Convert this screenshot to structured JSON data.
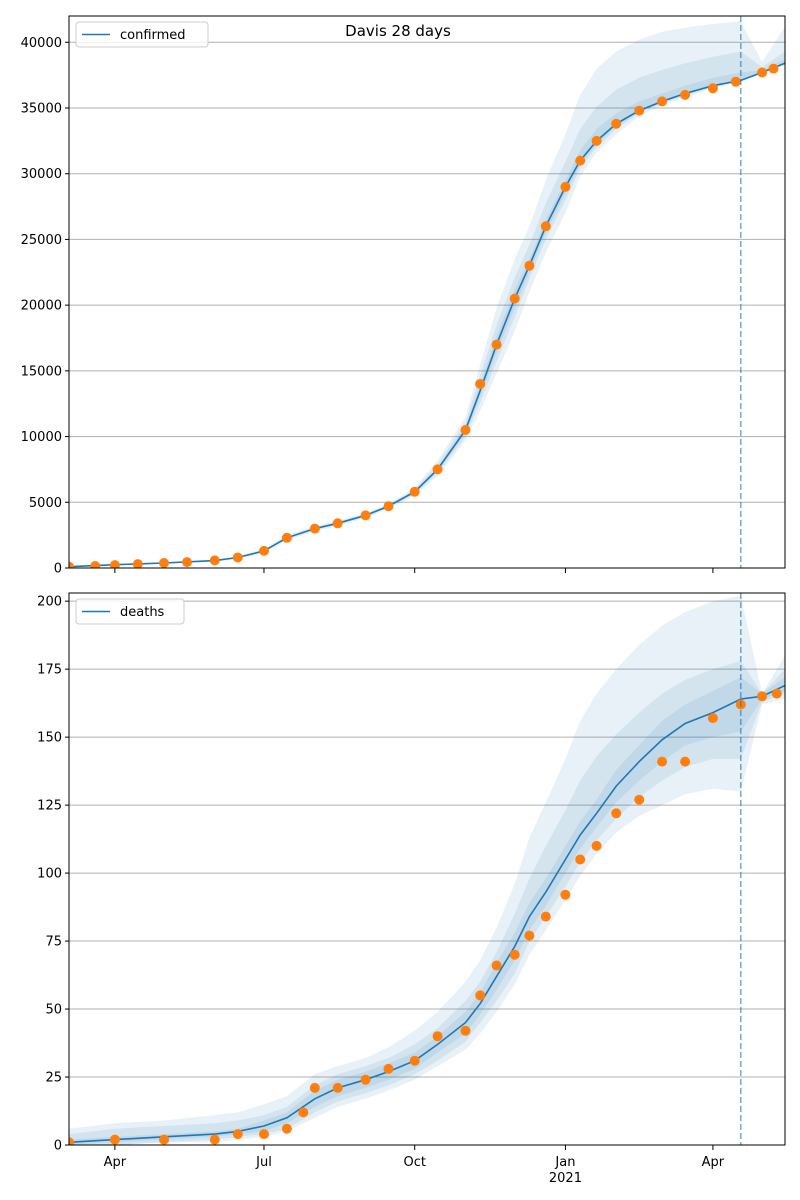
{
  "figure_title": "Davis 28 days",
  "colors": {
    "model_line": "#1f77b4",
    "observed_points": "#ff7f0e",
    "band": "#1f77b4",
    "grid": "#b0b0b0",
    "vline": "#1f77b4"
  },
  "x_axis": {
    "tick_labels": [
      "Apr",
      "Jul",
      "Oct",
      "Jan",
      "Apr"
    ],
    "tick_dates": [
      "2020-04-01",
      "2020-07-01",
      "2020-10-01",
      "2021-01-01",
      "2021-04-01"
    ],
    "year_label": "2021",
    "start": "2020-03-04",
    "end": "2021-05-15",
    "forecast_start": "2021-04-18"
  },
  "chart_data": [
    {
      "type": "line",
      "legend": "confirmed",
      "legend_position": "top-left",
      "grid": "y",
      "ylim": [
        0,
        42000
      ],
      "yticks": [
        0,
        5000,
        10000,
        15000,
        20000,
        25000,
        30000,
        35000,
        40000
      ],
      "ytick_labels": [
        "0",
        "5000",
        "10000",
        "15000",
        "20000",
        "25000",
        "30000",
        "35000",
        "40000"
      ],
      "model": {
        "x": [
          "2020-03-04",
          "2020-04-01",
          "2020-05-01",
          "2020-06-01",
          "2020-06-15",
          "2020-07-01",
          "2020-07-15",
          "2020-08-01",
          "2020-08-15",
          "2020-09-01",
          "2020-09-15",
          "2020-10-01",
          "2020-10-15",
          "2020-11-01",
          "2020-11-10",
          "2020-11-20",
          "2020-12-01",
          "2020-12-10",
          "2020-12-20",
          "2021-01-01",
          "2021-01-10",
          "2021-01-20",
          "2021-02-01",
          "2021-02-15",
          "2021-03-01",
          "2021-03-15",
          "2021-04-01",
          "2021-04-18",
          "2021-05-01",
          "2021-05-15"
        ],
        "y": [
          100,
          250,
          380,
          560,
          800,
          1300,
          2300,
          3000,
          3400,
          4000,
          4700,
          5800,
          7500,
          10500,
          13500,
          17000,
          20500,
          23000,
          26000,
          29000,
          31000,
          32500,
          33800,
          34800,
          35500,
          36100,
          36700,
          37100,
          37700,
          38400
        ]
      },
      "bands": [
        {
          "level": "outer",
          "lower": [
            80,
            200,
            320,
            480,
            700,
            1150,
            2100,
            2800,
            3200,
            3800,
            4500,
            5500,
            7000,
            9700,
            12000,
            14800,
            18000,
            21000,
            24000,
            27000,
            29800,
            31600,
            33000,
            34400,
            35200,
            35800,
            36500,
            37000,
            37700,
            38300
          ],
          "upper": [
            120,
            300,
            440,
            640,
            900,
            1450,
            2500,
            3200,
            3600,
            4200,
            4900,
            6100,
            8200,
            11500,
            15500,
            19800,
            23500,
            26000,
            29500,
            33000,
            36000,
            38000,
            39300,
            40200,
            40800,
            41100,
            41400,
            41600,
            38500,
            41200
          ]
        },
        {
          "level": "middle",
          "lower": [
            88,
            220,
            345,
            515,
            745,
            1215,
            2190,
            2890,
            3290,
            3890,
            4590,
            5630,
            7200,
            10000,
            12600,
            15700,
            19100,
            22000,
            25000,
            28000,
            30400,
            32000,
            33400,
            34600,
            35350,
            35950,
            36600,
            37050,
            37700,
            38350
          ],
          "upper": [
            112,
            280,
            415,
            605,
            855,
            1385,
            2410,
            3110,
            3510,
            4110,
            4810,
            5970,
            7900,
            11050,
            14650,
            18500,
            22100,
            24600,
            27750,
            30900,
            33400,
            35100,
            36400,
            37300,
            37900,
            38400,
            38900,
            39300,
            38100,
            39300
          ]
        },
        {
          "level": "inner",
          "lower": [
            94,
            235,
            363,
            538,
            773,
            1258,
            2245,
            2945,
            3345,
            3945,
            4645,
            5715,
            7350,
            10250,
            13050,
            16350,
            19800,
            22500,
            25500,
            28500,
            30700,
            32250,
            33600,
            34700,
            35425,
            36025,
            36650,
            37075,
            37700,
            38375
          ],
          "upper": [
            106,
            265,
            397,
            582,
            827,
            1342,
            2355,
            3055,
            3455,
            4055,
            4755,
            5885,
            7650,
            10750,
            13950,
            17650,
            21200,
            23500,
            26500,
            29500,
            31800,
            33400,
            34600,
            35500,
            36100,
            36700,
            37300,
            37700,
            37900,
            38700
          ]
        }
      ],
      "observed": {
        "x": [
          "2020-03-04",
          "2020-03-20",
          "2020-04-01",
          "2020-04-15",
          "2020-05-01",
          "2020-05-15",
          "2020-06-01",
          "2020-06-15",
          "2020-07-01",
          "2020-07-15",
          "2020-08-01",
          "2020-08-15",
          "2020-09-01",
          "2020-09-15",
          "2020-10-01",
          "2020-10-15",
          "2020-11-01",
          "2020-11-10",
          "2020-11-20",
          "2020-12-01",
          "2020-12-10",
          "2020-12-20",
          "2021-01-01",
          "2021-01-10",
          "2021-01-20",
          "2021-02-01",
          "2021-02-15",
          "2021-03-01",
          "2021-03-15",
          "2021-04-01",
          "2021-04-15",
          "2021-05-01",
          "2021-05-08"
        ],
        "y": [
          100,
          150,
          220,
          300,
          380,
          450,
          580,
          800,
          1300,
          2300,
          3000,
          3400,
          4000,
          4700,
          5800,
          7500,
          10500,
          14000,
          17000,
          20500,
          23000,
          26000,
          29000,
          31000,
          32500,
          33800,
          34800,
          35500,
          36000,
          36500,
          37000,
          37700,
          38000
        ]
      }
    },
    {
      "type": "line",
      "legend": "deaths",
      "legend_position": "top-left",
      "grid": "y",
      "ylim": [
        0,
        203
      ],
      "yticks": [
        0,
        25,
        50,
        75,
        100,
        125,
        150,
        175,
        200
      ],
      "ytick_labels": [
        "0",
        "25",
        "50",
        "75",
        "100",
        "125",
        "150",
        "175",
        "200"
      ],
      "model": {
        "x": [
          "2020-03-04",
          "2020-04-01",
          "2020-05-01",
          "2020-06-01",
          "2020-06-15",
          "2020-07-01",
          "2020-07-15",
          "2020-08-01",
          "2020-08-15",
          "2020-09-01",
          "2020-09-15",
          "2020-10-01",
          "2020-10-15",
          "2020-11-01",
          "2020-11-10",
          "2020-11-20",
          "2020-12-01",
          "2020-12-10",
          "2020-12-20",
          "2021-01-01",
          "2021-01-10",
          "2021-01-20",
          "2021-02-01",
          "2021-02-15",
          "2021-03-01",
          "2021-03-15",
          "2021-04-01",
          "2021-04-18",
          "2021-05-01",
          "2021-05-15"
        ],
        "y": [
          1,
          2,
          3,
          4,
          5,
          7,
          10,
          17,
          21,
          24,
          27,
          31,
          37,
          45,
          52,
          62,
          73,
          84,
          93,
          105,
          114,
          122,
          132,
          141,
          149,
          155,
          159,
          164,
          165,
          169
        ]
      },
      "bands": [
        {
          "level": "outer",
          "lower": [
            0,
            0,
            1,
            1,
            2,
            3,
            5,
            10,
            14,
            17,
            20,
            24,
            29,
            35,
            41,
            49,
            59,
            70,
            79,
            90,
            99,
            107,
            115,
            121,
            125,
            129,
            131,
            130,
            162,
            164
          ],
          "upper": [
            6,
            8,
            9,
            11,
            12,
            15,
            18,
            26,
            29,
            32,
            36,
            42,
            49,
            60,
            68,
            80,
            96,
            113,
            126,
            142,
            156,
            166,
            175,
            184,
            191,
            196,
            200,
            202,
            166,
            180
          ]
        },
        {
          "level": "middle",
          "lower": [
            0,
            0,
            1,
            2,
            3,
            4,
            6,
            12,
            16,
            19,
            22,
            26,
            31,
            38,
            45,
            53,
            63,
            75,
            84,
            95,
            104,
            112,
            120,
            128,
            134,
            139,
            142,
            142,
            163,
            166
          ],
          "upper": [
            4,
            6,
            7,
            8,
            9,
            11,
            14,
            22,
            26,
            29,
            32,
            37,
            43,
            53,
            60,
            71,
            85,
            98,
            110,
            123,
            134,
            143,
            151,
            159,
            166,
            171,
            175,
            178,
            166,
            175
          ]
        },
        {
          "level": "inner",
          "lower": [
            0,
            1,
            2,
            3,
            4,
            5,
            8,
            14,
            18,
            21,
            24,
            28,
            34,
            41,
            48,
            57,
            68,
            79,
            88,
            100,
            109,
            117,
            126,
            134,
            141,
            147,
            150,
            152,
            164,
            167
          ],
          "upper": [
            2,
            3,
            4,
            5,
            6,
            9,
            12,
            20,
            24,
            27,
            30,
            34,
            40,
            49,
            56,
            67,
            78,
            89,
            98,
            110,
            119,
            127,
            138,
            147,
            156,
            162,
            167,
            172,
            166,
            172
          ]
        }
      ],
      "observed": {
        "x": [
          "2020-03-04",
          "2020-04-01",
          "2020-05-01",
          "2020-06-01",
          "2020-06-15",
          "2020-07-01",
          "2020-07-15",
          "2020-07-25",
          "2020-08-01",
          "2020-08-15",
          "2020-09-01",
          "2020-09-15",
          "2020-10-01",
          "2020-10-15",
          "2020-11-01",
          "2020-11-10",
          "2020-11-20",
          "2020-12-01",
          "2020-12-10",
          "2020-12-20",
          "2021-01-01",
          "2021-01-10",
          "2021-01-20",
          "2021-02-01",
          "2021-02-15",
          "2021-03-01",
          "2021-03-15",
          "2021-04-01",
          "2021-04-18",
          "2021-05-01",
          "2021-05-10"
        ],
        "y": [
          1,
          2,
          2,
          2,
          4,
          4,
          6,
          12,
          21,
          21,
          24,
          28,
          31,
          40,
          42,
          55,
          66,
          70,
          77,
          84,
          92,
          105,
          110,
          122,
          127,
          141,
          141,
          157,
          162,
          165,
          166
        ]
      }
    }
  ]
}
